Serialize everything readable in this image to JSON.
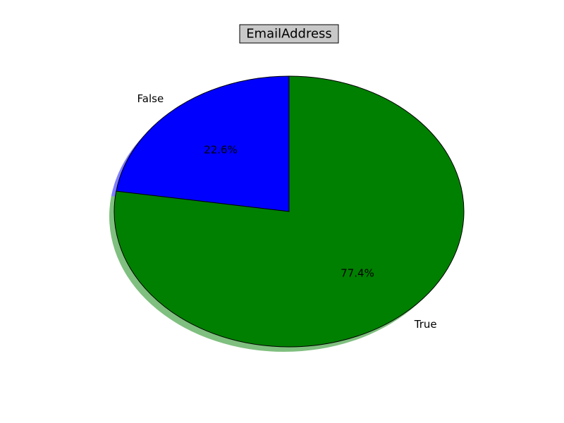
{
  "chart_data": {
    "type": "pie",
    "title": "EmailAddress",
    "categories": [
      "False",
      "True"
    ],
    "values": [
      22.6,
      77.4
    ],
    "percent_labels": [
      "22.6%",
      "77.4%"
    ],
    "colors": [
      "#0000ff",
      "#008000"
    ],
    "title_box_color": "#c8c8c8",
    "shadow": true,
    "start_angle_deg": 90,
    "direction": "counterclockwise"
  }
}
